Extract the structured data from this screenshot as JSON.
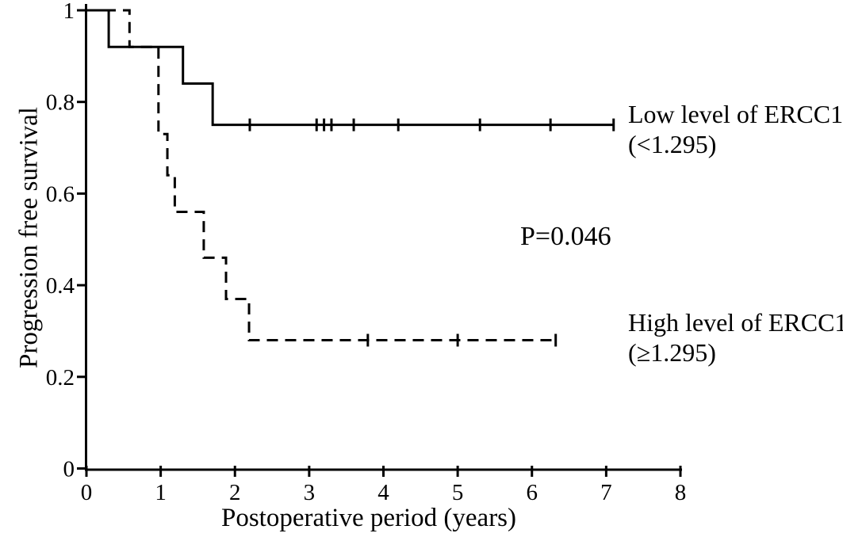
{
  "chart_data": {
    "type": "line",
    "subtype": "kaplan-meier-step",
    "title": "",
    "xlabel": "Postoperative period (years)",
    "ylabel": "Progression free survival",
    "xlim": [
      0,
      8
    ],
    "ylim": [
      0,
      1
    ],
    "grid": false,
    "background_color": "#ffffff",
    "line_color": "#000000",
    "x_ticks": [
      0,
      1,
      2,
      3,
      4,
      5,
      6,
      7,
      8
    ],
    "x_tick_labels": [
      "0",
      "1",
      "2",
      "3",
      "4",
      "5",
      "6",
      "7",
      "8"
    ],
    "y_ticks": [
      0,
      0.2,
      0.4,
      0.6,
      0.8,
      1
    ],
    "y_tick_labels": [
      "0",
      "0.2",
      "0.4",
      "0.6",
      "0.8",
      "1"
    ],
    "annotations": {
      "p_value": "P=0.046"
    },
    "legend_position": "right-of-curve-ends",
    "series": [
      {
        "id": "low-ercc1",
        "name": "Low level of ERCC1 (<1.295)",
        "label_lines": [
          "Low level of ERCC1",
          "(<1.295)"
        ],
        "line_style": "solid",
        "steps": [
          [
            0,
            1.0
          ],
          [
            0.3,
            0.92
          ],
          [
            1.3,
            0.84
          ],
          [
            1.7,
            0.75
          ]
        ],
        "end_time": 7.1,
        "censored_times": [
          2.2,
          3.1,
          3.2,
          3.3,
          3.6,
          4.2,
          5.3,
          6.25,
          7.1
        ]
      },
      {
        "id": "high-ercc1",
        "name": "High level of ERCC1 (≥1.295)",
        "label_lines": [
          "High level of ERCC1",
          "(≥1.295)"
        ],
        "line_style": "dashed",
        "steps": [
          [
            0,
            1.0
          ],
          [
            0.58,
            0.92
          ],
          [
            0.97,
            0.73
          ],
          [
            1.09,
            0.64
          ],
          [
            1.19,
            0.56
          ],
          [
            1.58,
            0.46
          ],
          [
            1.88,
            0.37
          ],
          [
            2.19,
            0.28
          ]
        ],
        "end_time": 6.32,
        "censored_times": [
          3.79,
          5.0,
          6.32
        ]
      }
    ]
  }
}
